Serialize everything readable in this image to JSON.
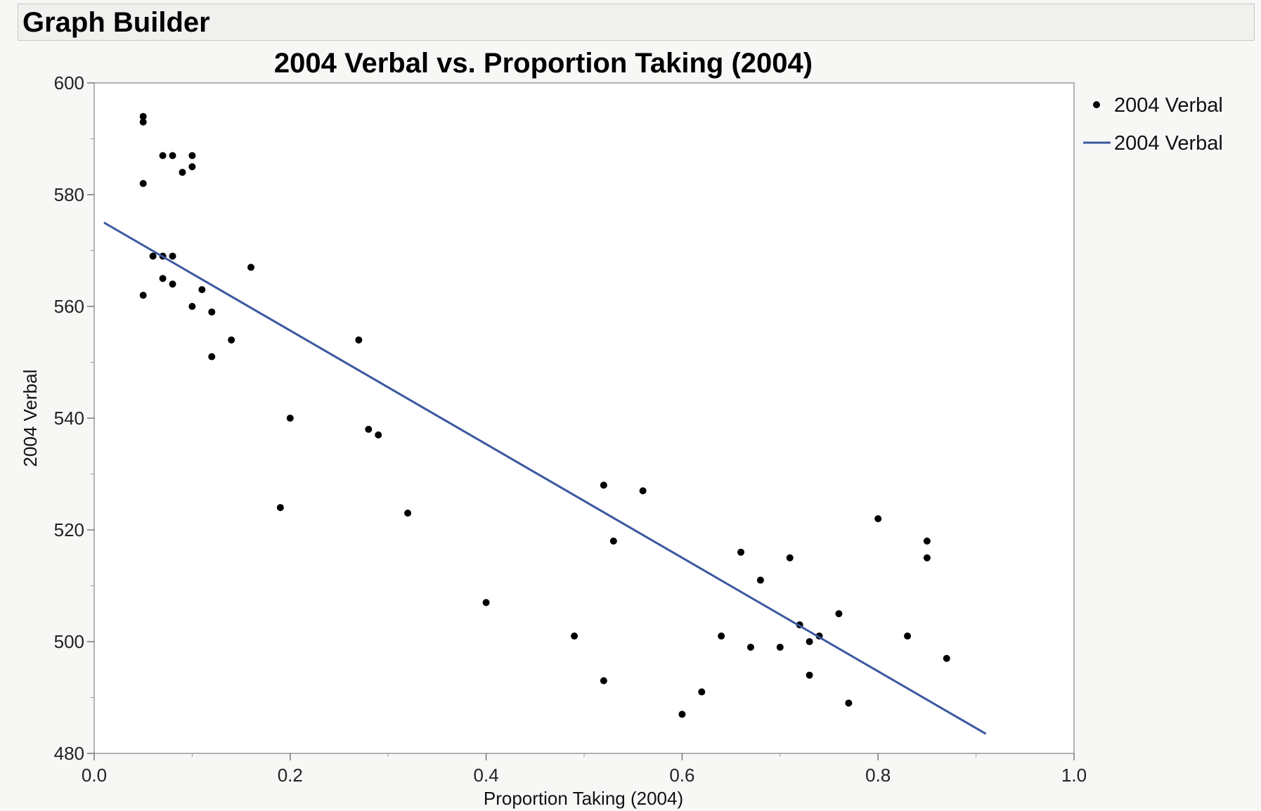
{
  "window": {
    "title": "Graph Builder"
  },
  "chart_data": {
    "type": "scatter",
    "title": "2004 Verbal vs. Proportion Taking (2004)",
    "xlabel": "Proportion Taking (2004)",
    "ylabel": "2004 Verbal",
    "xlim": [
      0.0,
      1.0
    ],
    "ylim": [
      480,
      600
    ],
    "x_ticks": [
      "0.0",
      "0.2",
      "0.4",
      "0.6",
      "0.8",
      "1.0"
    ],
    "y_ticks": [
      "480",
      "500",
      "520",
      "540",
      "560",
      "580",
      "600"
    ],
    "grid": false,
    "legend_position": "right",
    "legend": [
      {
        "label": "2004 Verbal",
        "kind": "point"
      },
      {
        "label": "2004 Verbal",
        "kind": "line"
      }
    ],
    "colors": {
      "points": "#000000",
      "fit_line": "#3a57a0"
    },
    "series": [
      {
        "kind": "points",
        "points": [
          [
            0.05,
            594
          ],
          [
            0.05,
            593
          ],
          [
            0.05,
            582
          ],
          [
            0.05,
            562
          ],
          [
            0.06,
            569
          ],
          [
            0.07,
            587
          ],
          [
            0.07,
            569
          ],
          [
            0.07,
            565
          ],
          [
            0.08,
            587
          ],
          [
            0.08,
            569
          ],
          [
            0.08,
            564
          ],
          [
            0.09,
            584
          ],
          [
            0.1,
            587
          ],
          [
            0.1,
            585
          ],
          [
            0.1,
            560
          ],
          [
            0.11,
            563
          ],
          [
            0.12,
            559
          ],
          [
            0.12,
            551
          ],
          [
            0.14,
            554
          ],
          [
            0.16,
            567
          ],
          [
            0.19,
            524
          ],
          [
            0.2,
            540
          ],
          [
            0.27,
            554
          ],
          [
            0.28,
            538
          ],
          [
            0.29,
            537
          ],
          [
            0.32,
            523
          ],
          [
            0.4,
            507
          ],
          [
            0.49,
            501
          ],
          [
            0.52,
            528
          ],
          [
            0.52,
            493
          ],
          [
            0.53,
            518
          ],
          [
            0.56,
            527
          ],
          [
            0.6,
            487
          ],
          [
            0.62,
            491
          ],
          [
            0.64,
            501
          ],
          [
            0.66,
            516
          ],
          [
            0.67,
            499
          ],
          [
            0.68,
            511
          ],
          [
            0.7,
            499
          ],
          [
            0.71,
            515
          ],
          [
            0.72,
            503
          ],
          [
            0.73,
            500
          ],
          [
            0.73,
            494
          ],
          [
            0.74,
            501
          ],
          [
            0.76,
            505
          ],
          [
            0.77,
            489
          ],
          [
            0.8,
            522
          ],
          [
            0.83,
            501
          ],
          [
            0.85,
            518
          ],
          [
            0.85,
            515
          ],
          [
            0.87,
            497
          ]
        ]
      },
      {
        "kind": "fit_line",
        "points": [
          [
            0.01,
            575
          ],
          [
            0.91,
            483.5
          ]
        ]
      }
    ]
  }
}
